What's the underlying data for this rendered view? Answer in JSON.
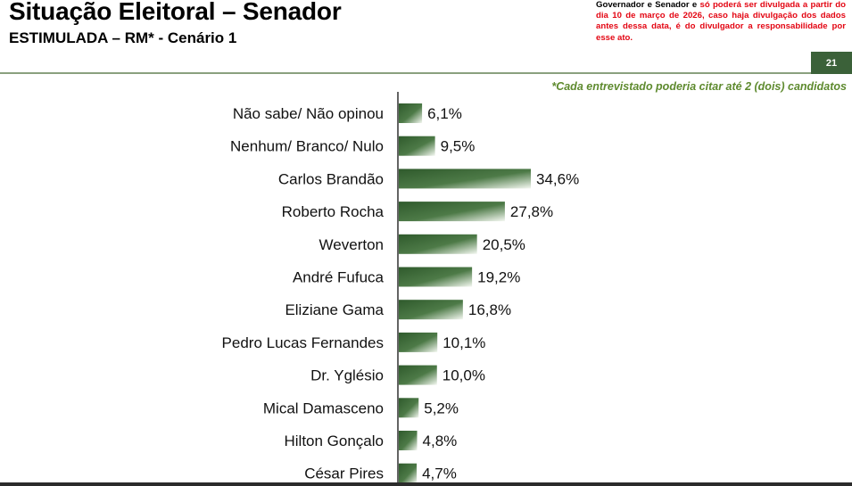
{
  "header": {
    "title": "Situação Eleitoral – Senador",
    "subtitle": "ESTIMULADA – RM* - Cenário 1",
    "notice_black": "Governador e Senador e ",
    "notice_red": "só poderá ser divulgada a partir do dia 10 de março de 2026, caso haja divulgação dos dados antes dessa data, é do divulgador a responsabilidade por esse ato.",
    "page_number": "21"
  },
  "footnote": "*Cada entrevistado poderia citar até 2 (dois) candidatos",
  "colors": {
    "bar_dark": "#2f5a2c",
    "bar_mid": "#4d7a47",
    "bar_light": "#f4f8f1",
    "accent": "#3b6139",
    "notice_red": "#e30613"
  },
  "chart_data": {
    "type": "bar",
    "orientation": "horizontal",
    "categories": [
      "Não sabe/ Não opinou",
      "Nenhum/ Branco/ Nulo",
      "Carlos Brandão",
      "Roberto Rocha",
      "Weverton",
      "André Fufuca",
      "Eliziane Gama",
      "Pedro Lucas Fernandes",
      "Dr. Yglésio",
      "Mical Damasceno",
      "Hilton Gonçalo",
      "César Pires"
    ],
    "values": [
      6.1,
      9.5,
      34.6,
      27.8,
      20.5,
      19.2,
      16.8,
      10.1,
      10.0,
      5.2,
      4.8,
      4.7
    ],
    "value_labels": [
      "6,1%",
      "9,5%",
      "34,6%",
      "27,8%",
      "20,5%",
      "19,2%",
      "16,8%",
      "10,1%",
      "10,0%",
      "5,2%",
      "4,8%",
      "4,7%"
    ],
    "xlim": [
      0,
      34.6
    ],
    "grid": false,
    "legend": "none"
  }
}
